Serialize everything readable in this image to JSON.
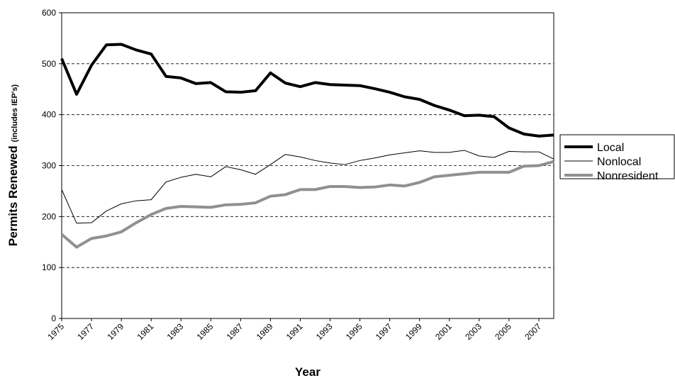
{
  "chart_data": {
    "type": "line",
    "y_label": "Permits Renewed",
    "y_label_note": "(includes IEP's)",
    "x_label": "Year",
    "x": [
      1975,
      1976,
      1977,
      1978,
      1979,
      1980,
      1981,
      1982,
      1983,
      1984,
      1985,
      1986,
      1987,
      1988,
      1989,
      1990,
      1991,
      1992,
      1993,
      1994,
      1995,
      1996,
      1997,
      1998,
      1999,
      2000,
      2001,
      2002,
      2003,
      2004,
      2005,
      2006,
      2007,
      2008
    ],
    "xlim": [
      1975,
      2008
    ],
    "xticks": [
      1975,
      1977,
      1979,
      1981,
      1983,
      1985,
      1987,
      1989,
      1991,
      1993,
      1995,
      1997,
      1999,
      2001,
      2003,
      2005,
      2007
    ],
    "ylim": [
      0,
      600
    ],
    "yticks": [
      0,
      100,
      200,
      300,
      400,
      500,
      600
    ],
    "grid": true,
    "series": [
      {
        "name": "Local",
        "color": "#000000",
        "width": 4,
        "values": [
          510,
          440,
          497,
          537,
          538,
          527,
          519,
          475,
          472,
          461,
          463,
          445,
          444,
          447,
          482,
          462,
          455,
          463,
          459,
          458,
          457,
          451,
          444,
          435,
          430,
          418,
          409,
          398,
          399,
          396,
          374,
          362,
          358,
          360
        ]
      },
      {
        "name": "Nonlocal",
        "color": "#000000",
        "width": 1,
        "values": [
          253,
          187,
          188,
          211,
          225,
          231,
          233,
          268,
          277,
          283,
          278,
          298,
          292,
          283,
          302,
          322,
          317,
          310,
          305,
          302,
          310,
          315,
          321,
          325,
          329,
          326,
          326,
          330,
          319,
          316,
          328,
          327,
          327,
          313
        ]
      },
      {
        "name": "Nonresident",
        "color": "#909090",
        "width": 4,
        "values": [
          165,
          140,
          157,
          162,
          170,
          188,
          204,
          216,
          220,
          219,
          218,
          223,
          224,
          227,
          240,
          243,
          253,
          253,
          259,
          259,
          257,
          258,
          262,
          260,
          267,
          278,
          281,
          284,
          287,
          287,
          287,
          299,
          300,
          308
        ]
      }
    ]
  }
}
